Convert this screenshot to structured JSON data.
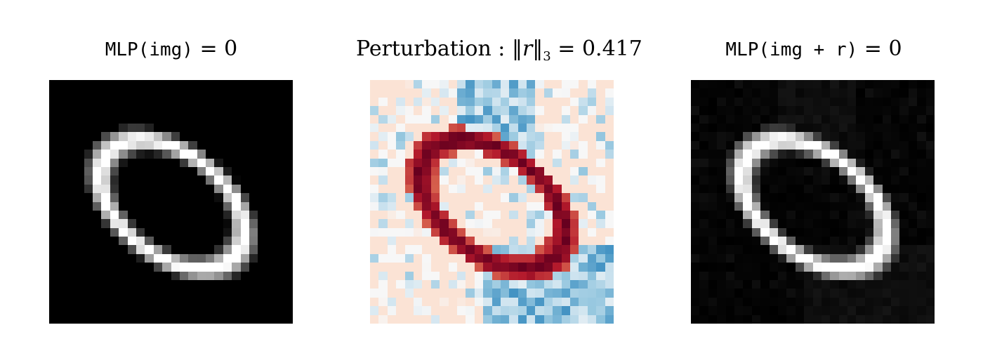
{
  "panels": [
    {
      "id": "original",
      "title_code": "MLP(img)",
      "title_eq": " = 0"
    },
    {
      "id": "perturbation",
      "title_prefix": "Perturbation : ",
      "title_norm_open": "‖",
      "title_var": "r",
      "title_norm_close": "‖",
      "title_sub": "3",
      "title_eq": " = 0.417"
    },
    {
      "id": "adversarial",
      "title_code": "MLP(img + r)",
      "title_eq": " = 0"
    }
  ],
  "colormaps": {
    "gray": [
      "#000000",
      "#ffffff"
    ],
    "rdbu": [
      "#053061",
      "#2166ac",
      "#4393c3",
      "#92c5de",
      "#d1e5f0",
      "#f7f7f7",
      "#fddbc7",
      "#f4a582",
      "#d6604d",
      "#b2182b",
      "#67001f"
    ]
  }
}
